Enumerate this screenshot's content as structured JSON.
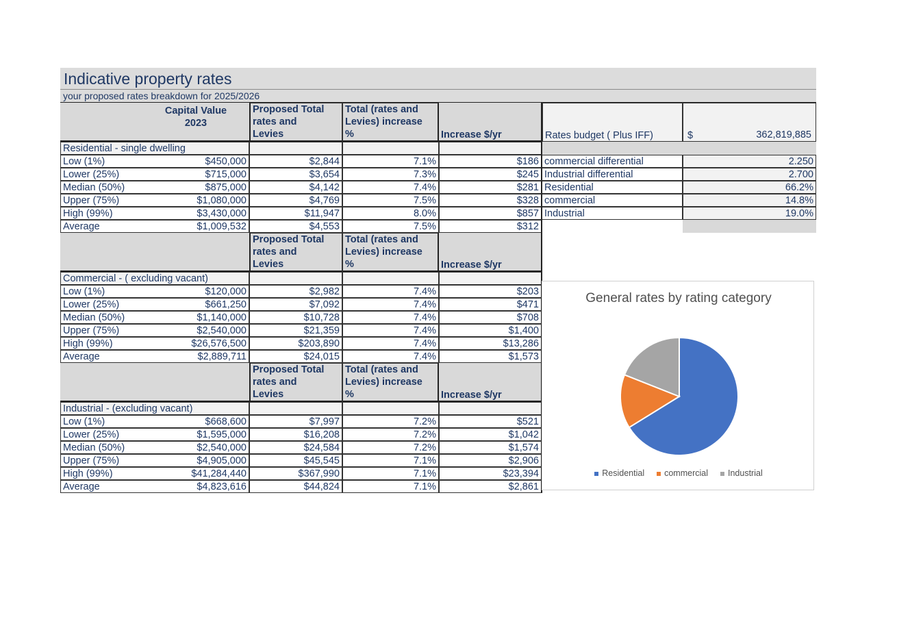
{
  "title": "Indicative property rates",
  "subtitle": "your proposed rates breakdown for 2025/2026",
  "header": {
    "capital_value_line1": "Capital Value",
    "capital_value_line2": "2023",
    "proposed_line1": "Proposed Total",
    "proposed_line2": "rates and",
    "proposed_line3": "Levies",
    "total_line1": "Total (rates and",
    "total_line2": "Levies) increase",
    "total_line3": "%",
    "increase": "Increase  $/yr"
  },
  "budget": {
    "label": "Rates budget ( Plus IFF)",
    "currency": "$",
    "value": "362,819,885"
  },
  "summary": [
    {
      "label": "commercial differential",
      "value": "2.250"
    },
    {
      "label": "Industrial differential",
      "value": "2.700"
    },
    {
      "label": "Residential",
      "value": "66.2%"
    },
    {
      "label": "commercial",
      "value": "14.8%"
    },
    {
      "label": "Industrial",
      "value": "19.0%"
    }
  ],
  "sections": [
    {
      "name": "Residential - single dwelling",
      "rows": [
        {
          "label": "Low (1%)",
          "capital": "$450,000",
          "proposed": "$2,844",
          "pct": "7.1%",
          "increase": "$186"
        },
        {
          "label": "Lower  (25%)",
          "capital": "$715,000",
          "proposed": "$3,654",
          "pct": "7.3%",
          "increase": "$245"
        },
        {
          "label": "Median (50%)",
          "capital": "$875,000",
          "proposed": "$4,142",
          "pct": "7.4%",
          "increase": "$281"
        },
        {
          "label": "Upper (75%)",
          "capital": "$1,080,000",
          "proposed": "$4,769",
          "pct": "7.5%",
          "increase": "$328"
        },
        {
          "label": "High (99%)",
          "capital": "$3,430,000",
          "proposed": "$11,947",
          "pct": "8.0%",
          "increase": "$857"
        },
        {
          "label": "Average",
          "capital": "$1,009,532",
          "proposed": "$4,553",
          "pct": "7.5%",
          "increase": "$312"
        }
      ]
    },
    {
      "name": "Commercial - ( excluding vacant)",
      "rows": [
        {
          "label": "Low (1%)",
          "capital": "$120,000",
          "proposed": "$2,982",
          "pct": "7.4%",
          "increase": "$203"
        },
        {
          "label": "Lower  (25%)",
          "capital": "$661,250",
          "proposed": "$7,092",
          "pct": "7.4%",
          "increase": "$471"
        },
        {
          "label": "Median (50%)",
          "capital": "$1,140,000",
          "proposed": "$10,728",
          "pct": "7.4%",
          "increase": "$708"
        },
        {
          "label": "Upper (75%)",
          "capital": "$2,540,000",
          "proposed": "$21,359",
          "pct": "7.4%",
          "increase": "$1,400"
        },
        {
          "label": "High (99%)",
          "capital": "$26,576,500",
          "proposed": "$203,890",
          "pct": "7.4%",
          "increase": "$13,286"
        },
        {
          "label": "Average",
          "capital": "$2,889,711",
          "proposed": "$24,015",
          "pct": "7.4%",
          "increase": "$1,573"
        }
      ]
    },
    {
      "name": "Industrial - (excluding vacant)",
      "rows": [
        {
          "label": "Low (1%)",
          "capital": "$668,600",
          "proposed": "$7,997",
          "pct": "7.2%",
          "increase": "$521"
        },
        {
          "label": "Lower  (25%)",
          "capital": "$1,595,000",
          "proposed": "$16,208",
          "pct": "7.2%",
          "increase": "$1,042"
        },
        {
          "label": "Median (50%)",
          "capital": "$2,540,000",
          "proposed": "$24,584",
          "pct": "7.2%",
          "increase": "$1,574"
        },
        {
          "label": "Upper (75%)",
          "capital": "$4,905,000",
          "proposed": "$45,545",
          "pct": "7.1%",
          "increase": "$2,906"
        },
        {
          "label": "High (99%)",
          "capital": "$41,284,440",
          "proposed": "$367,990",
          "pct": "7.1%",
          "increase": "$23,394"
        },
        {
          "label": "Average",
          "capital": "$4,823,616",
          "proposed": "$44,824",
          "pct": "7.1%",
          "increase": "$2,861"
        }
      ]
    }
  ],
  "chart_data": {
    "type": "pie",
    "title": "General rates by rating category",
    "categories": [
      "Residential",
      "commercial",
      "Industrial"
    ],
    "values": [
      66.2,
      14.8,
      19.0
    ],
    "colors": [
      "#4472c4",
      "#ed7d31",
      "#a5a5a5"
    ],
    "legend": "bottom"
  }
}
